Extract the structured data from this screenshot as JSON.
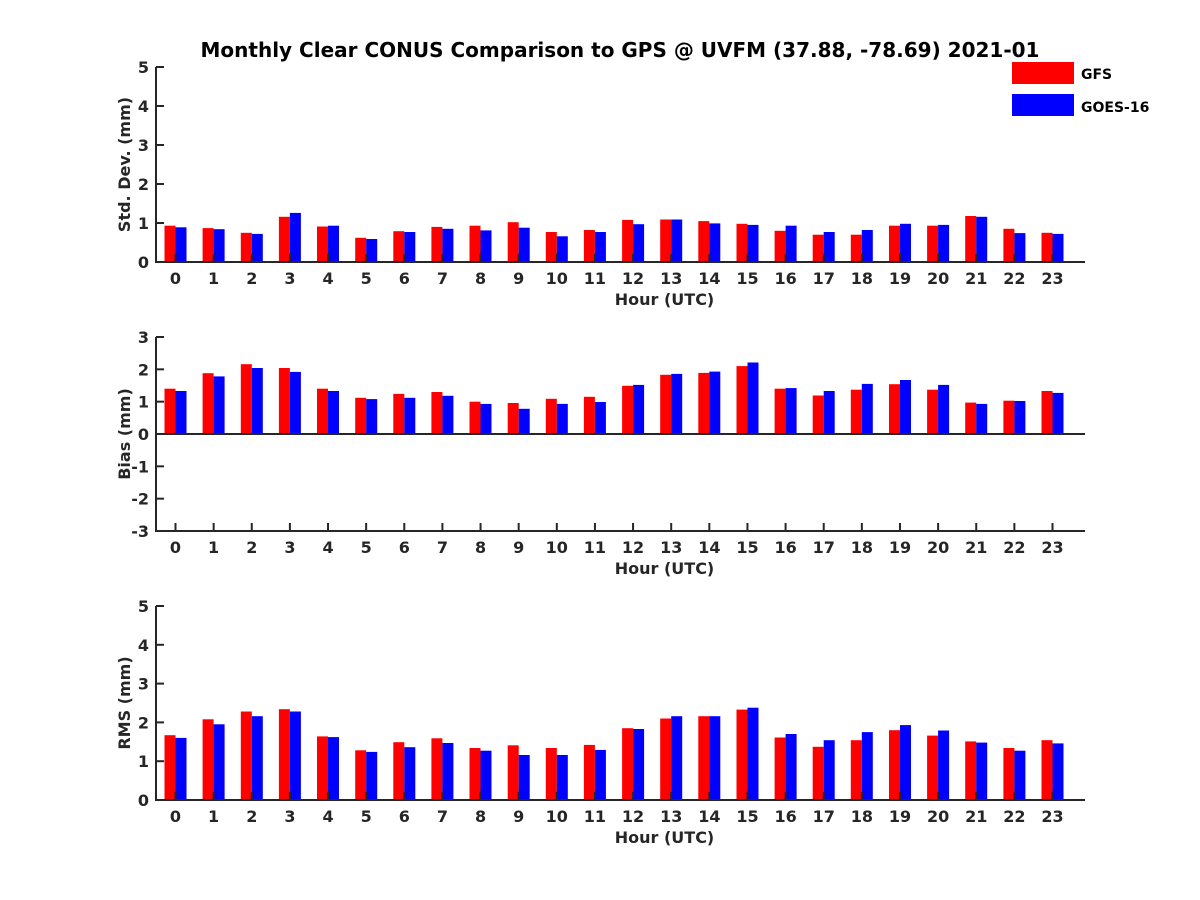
{
  "chart_data": [
    {
      "type": "bar",
      "title": "Monthly Clear CONUS Comparison to GPS @ UVFM (37.88, -78.69) 2021-01",
      "xlabel": "Hour (UTC)",
      "ylabel": "Std. Dev. (mm)",
      "ylim": [
        0,
        5
      ],
      "yticks": [
        "0",
        "1",
        "2",
        "3",
        "4",
        "5"
      ],
      "categories": [
        "0",
        "1",
        "2",
        "3",
        "4",
        "5",
        "6",
        "7",
        "8",
        "9",
        "10",
        "11",
        "12",
        "13",
        "14",
        "15",
        "16",
        "17",
        "18",
        "19",
        "20",
        "21",
        "22",
        "23"
      ],
      "series": [
        {
          "name": "GFS",
          "color": "#ff0000",
          "values": [
            0.93,
            0.87,
            0.75,
            1.16,
            0.91,
            0.62,
            0.79,
            0.9,
            0.93,
            1.02,
            0.77,
            0.82,
            1.08,
            1.09,
            1.05,
            0.98,
            0.8,
            0.7,
            0.7,
            0.93,
            0.93,
            1.18,
            0.85,
            0.75
          ]
        },
        {
          "name": "GOES-16",
          "color": "#0000ff",
          "values": [
            0.89,
            0.84,
            0.72,
            1.26,
            0.93,
            0.59,
            0.77,
            0.85,
            0.81,
            0.88,
            0.66,
            0.77,
            0.97,
            1.09,
            0.99,
            0.95,
            0.93,
            0.77,
            0.82,
            0.98,
            0.95,
            1.16,
            0.74,
            0.72
          ]
        }
      ],
      "legend": "top-right"
    },
    {
      "type": "bar",
      "xlabel": "Hour (UTC)",
      "ylabel": "Bias (mm)",
      "ylim": [
        -3,
        3
      ],
      "yticks": [
        "-3",
        "-2",
        "-1",
        "0",
        "1",
        "2",
        "3"
      ],
      "categories": [
        "0",
        "1",
        "2",
        "3",
        "4",
        "5",
        "6",
        "7",
        "8",
        "9",
        "10",
        "11",
        "12",
        "13",
        "14",
        "15",
        "16",
        "17",
        "18",
        "19",
        "20",
        "21",
        "22",
        "23"
      ],
      "series": [
        {
          "name": "GFS",
          "color": "#ff0000",
          "values": [
            1.4,
            1.88,
            2.16,
            2.04,
            1.4,
            1.12,
            1.24,
            1.3,
            1.0,
            0.96,
            1.09,
            1.15,
            1.49,
            1.83,
            1.89,
            2.1,
            1.4,
            1.19,
            1.37,
            1.54,
            1.37,
            0.97,
            1.03,
            1.33
          ]
        },
        {
          "name": "GOES-16",
          "color": "#0000ff",
          "values": [
            1.33,
            1.78,
            2.04,
            1.92,
            1.33,
            1.08,
            1.12,
            1.18,
            0.93,
            0.78,
            0.93,
            0.99,
            1.52,
            1.86,
            1.93,
            2.21,
            1.42,
            1.33,
            1.55,
            1.67,
            1.52,
            0.93,
            1.02,
            1.27
          ]
        }
      ]
    },
    {
      "type": "bar",
      "xlabel": "Hour (UTC)",
      "ylabel": "RMS (mm)",
      "ylim": [
        0,
        5
      ],
      "yticks": [
        "0",
        "1",
        "2",
        "3",
        "4",
        "5"
      ],
      "categories": [
        "0",
        "1",
        "2",
        "3",
        "4",
        "5",
        "6",
        "7",
        "8",
        "9",
        "10",
        "11",
        "12",
        "13",
        "14",
        "15",
        "16",
        "17",
        "18",
        "19",
        "20",
        "21",
        "22",
        "23"
      ],
      "series": [
        {
          "name": "GFS",
          "color": "#ff0000",
          "values": [
            1.67,
            2.08,
            2.28,
            2.34,
            1.64,
            1.28,
            1.49,
            1.59,
            1.34,
            1.41,
            1.34,
            1.42,
            1.85,
            2.1,
            2.16,
            2.33,
            1.61,
            1.37,
            1.54,
            1.8,
            1.66,
            1.51,
            1.34,
            1.54
          ]
        },
        {
          "name": "GOES-16",
          "color": "#0000ff",
          "values": [
            1.6,
            1.95,
            2.16,
            2.28,
            1.62,
            1.24,
            1.36,
            1.47,
            1.27,
            1.16,
            1.16,
            1.29,
            1.83,
            2.16,
            2.16,
            2.38,
            1.7,
            1.54,
            1.75,
            1.93,
            1.79,
            1.48,
            1.27,
            1.46
          ]
        }
      ]
    }
  ]
}
